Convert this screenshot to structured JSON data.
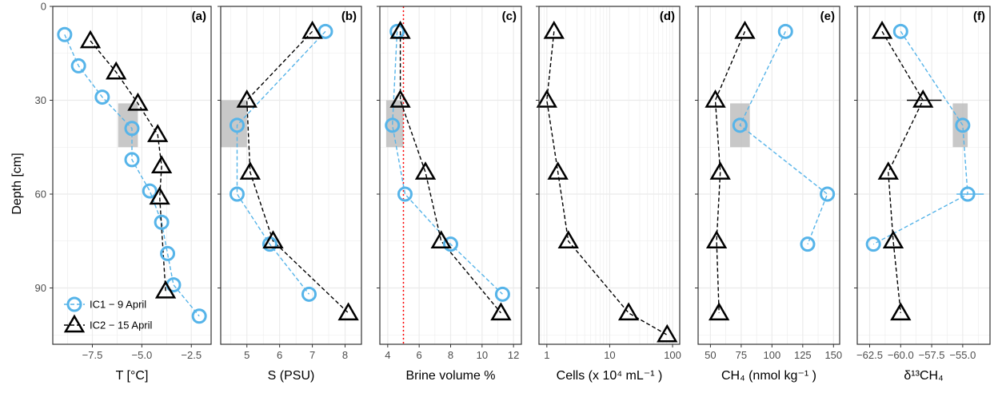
{
  "y_axis": {
    "title": "Depth [cm]",
    "ticks": [
      0,
      30,
      60,
      90
    ],
    "ylim": [
      0,
      108
    ],
    "reversed": true
  },
  "legend": {
    "position": "bottom-left of panel (a)",
    "entries": [
      {
        "label": "IC1 − 9 April",
        "marker": "circle",
        "color": "#56B4E9",
        "line": "dashed"
      },
      {
        "label": "IC2 − 15 April",
        "marker": "triangle",
        "color": "#000000",
        "line": "dashed"
      }
    ]
  },
  "colors": {
    "ic1": "#56B4E9",
    "ic2": "#000000",
    "threshold": "#ff0000",
    "shade": "#bebebe",
    "grid": "#ebebeb"
  },
  "chart_data": [
    {
      "type": "line",
      "panel": "(a)",
      "xlabel": "T [°C]",
      "xlim": [
        -9.5,
        -1.5
      ],
      "xticks": [
        -7.5,
        -5.0,
        -2.5
      ],
      "xtick_labels": [
        "−7.5",
        "−5.0",
        "−2.5"
      ],
      "grid": true,
      "shade": {
        "x": [
          -6.2,
          -5.2
        ],
        "y": [
          31,
          45
        ]
      },
      "series": [
        {
          "name": "IC1 − 9 April",
          "marker": "circle",
          "x": [
            -8.9,
            -8.2,
            -7.0,
            -5.5,
            -5.5,
            -4.6,
            -4.0,
            -3.7,
            -3.4,
            -2.1
          ],
          "y": [
            9,
            19,
            29,
            39,
            49,
            59,
            69,
            79,
            89,
            99
          ]
        },
        {
          "name": "IC2 − 15 April",
          "marker": "triangle",
          "x": [
            -7.6,
            -6.3,
            -5.2,
            -4.2,
            -4.0,
            -4.1,
            -3.8
          ],
          "y": [
            11,
            21,
            31,
            41,
            51,
            61,
            91
          ]
        }
      ]
    },
    {
      "type": "line",
      "panel": "(b)",
      "xlabel": "S (PSU)",
      "xlim": [
        4.2,
        8.5
      ],
      "xticks": [
        5,
        6,
        7,
        8
      ],
      "xtick_labels": [
        "5",
        "6",
        "7",
        "8"
      ],
      "grid": true,
      "shade": {
        "x": [
          4.2,
          5.0
        ],
        "y": [
          30,
          45
        ]
      },
      "series": [
        {
          "name": "IC1 − 9 April",
          "marker": "circle",
          "x": [
            7.4,
            4.7,
            4.7,
            5.7,
            6.9
          ],
          "y": [
            8,
            38,
            60,
            76,
            92
          ]
        },
        {
          "name": "IC2 − 15 April",
          "marker": "triangle",
          "x": [
            7.0,
            5.0,
            5.1,
            5.8,
            8.1
          ],
          "y": [
            8,
            30,
            53,
            75,
            98
          ]
        }
      ]
    },
    {
      "type": "line",
      "panel": "(c)",
      "xlabel": "Brine volume %",
      "xlim": [
        3.5,
        12.5
      ],
      "xticks": [
        4,
        6,
        8,
        10,
        12
      ],
      "xtick_labels": [
        "4",
        "6",
        "8",
        "10",
        "12"
      ],
      "grid": true,
      "threshold_x": 5,
      "shade": {
        "x": [
          3.9,
          5.0
        ],
        "y": [
          30,
          45
        ]
      },
      "series": [
        {
          "name": "IC1 − 9 April",
          "marker": "circle",
          "x": [
            4.6,
            4.3,
            5.1,
            8.0,
            11.3
          ],
          "y": [
            8,
            38,
            60,
            76,
            92
          ]
        },
        {
          "name": "IC2 − 15 April",
          "marker": "triangle",
          "x": [
            4.8,
            4.8,
            6.4,
            7.4,
            11.2
          ],
          "y": [
            8,
            30,
            53,
            75,
            98
          ]
        }
      ]
    },
    {
      "type": "line",
      "panel": "(d)",
      "xlabel": "Cells (x 10⁴ mL⁻¹ )",
      "xscale": "log",
      "xlim": [
        0.75,
        130
      ],
      "xticks": [
        1,
        10,
        100
      ],
      "xtick_labels": [
        "1",
        "10",
        "100"
      ],
      "grid": true,
      "series": [
        {
          "name": "IC2 − 15 April",
          "marker": "triangle",
          "x": [
            1.3,
            1.0,
            1.5,
            2.2,
            20,
            82
          ],
          "y": [
            8,
            30,
            53,
            75,
            98,
            105
          ]
        }
      ]
    },
    {
      "type": "line",
      "panel": "(e)",
      "xlabel": "CH₄ (nmol kg⁻¹ )",
      "xlim": [
        40,
        155
      ],
      "xticks": [
        50,
        75,
        100,
        125,
        150
      ],
      "xtick_labels": [
        "50",
        "75",
        "100",
        "125",
        "150"
      ],
      "grid": true,
      "shade": {
        "x": [
          66,
          82
        ],
        "y": [
          31,
          45
        ]
      },
      "series": [
        {
          "name": "IC1 − 9 April",
          "marker": "circle",
          "x": [
            111,
            74,
            145,
            129
          ],
          "y": [
            8,
            38,
            60,
            76
          ]
        },
        {
          "name": "IC2 − 15 April",
          "marker": "triangle",
          "x": [
            78,
            54,
            58,
            55,
            57
          ],
          "y": [
            8,
            30,
            53,
            75,
            98
          ]
        }
      ]
    },
    {
      "type": "line",
      "panel": "(f)",
      "xlabel": "δ¹³CH₄",
      "xlim": [
        -63.5,
        -52.8
      ],
      "xticks": [
        -62.5,
        -60.0,
        -57.5,
        -55.0
      ],
      "xtick_labels": [
        "−62.5",
        "−60.0",
        "−57.5",
        "−55.0"
      ],
      "grid": true,
      "shade": {
        "x": [
          -55.8,
          -54.6
        ],
        "y": [
          31,
          45
        ]
      },
      "series": [
        {
          "name": "IC1 − 9 April",
          "marker": "circle",
          "x": [
            -60.0,
            -55.0,
            -54.6,
            -62.2
          ],
          "y": [
            8,
            38,
            60,
            76
          ]
        },
        {
          "name": "IC2 − 15 April",
          "marker": "triangle",
          "x": [
            -61.5,
            -58.2,
            -61.0,
            -60.6,
            -60.0
          ],
          "y": [
            8,
            30,
            53,
            75,
            98
          ]
        }
      ],
      "error_bars": [
        {
          "series": "IC2 − 15 April",
          "y": 30,
          "x_low": -59.5,
          "x_high": -56.7
        },
        {
          "series": "IC1 − 9 April",
          "y": 60,
          "x_low": -55.5,
          "x_high": -53.3
        }
      ]
    }
  ]
}
